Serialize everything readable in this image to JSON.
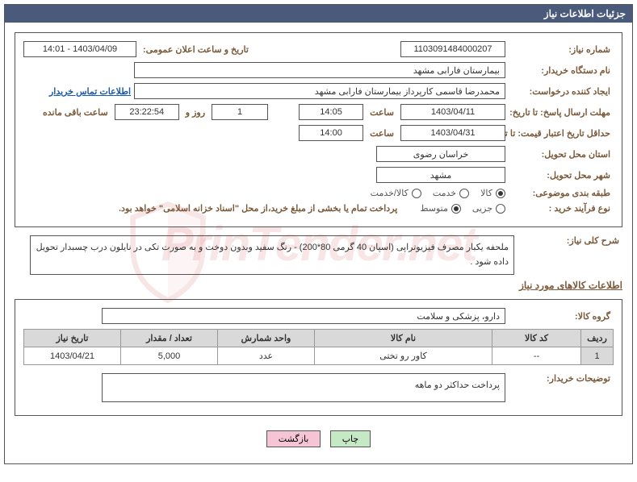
{
  "title": "جزئیات اطلاعات نیاز",
  "fields": {
    "need_no_label": "شماره نیاز:",
    "need_no": "1103091484000207",
    "announce_label": "تاریخ و ساعت اعلان عمومی:",
    "announce_val": "1403/04/09 - 14:01",
    "buyer_org_label": "نام دستگاه خریدار:",
    "buyer_org": "بیمارستان فارابی مشهد",
    "creator_label": "ایجاد کننده درخواست:",
    "creator": "محمدرضا قاسمی کارپرداز بیمارستان فارابی مشهد",
    "contact_link": "اطلاعات تماس خریدار",
    "deadline_send_label": "مهلت ارسال پاسخ: تا تاریخ:",
    "deadline_date": "1403/04/11",
    "time_label": "ساعت",
    "deadline_time": "14:05",
    "remain_days": "1",
    "remain_days_label": "روز و",
    "remain_time": "23:22:54",
    "remain_suffix": "ساعت باقی مانده",
    "validity_label": "حداقل تاریخ اعتبار قیمت: تا تاریخ:",
    "validity_date": "1403/04/31",
    "validity_time": "14:00",
    "province_label": "استان محل تحویل:",
    "province": "خراسان رضوی",
    "city_label": "شهر محل تحویل:",
    "city": "مشهد",
    "category_label": "طبقه بندی موضوعی:",
    "cat_opts": [
      "کالا",
      "خدمت",
      "کالا/خدمت"
    ],
    "cat_selected": 0,
    "process_label": "نوع فرآیند خرید :",
    "proc_opts": [
      "جزیی",
      "متوسط"
    ],
    "proc_selected": 1,
    "process_note": "پرداخت تمام یا بخشی از مبلغ خرید،از محل \"اسناد خزانه اسلامی\" خواهد بود.",
    "desc_label": "شرح کلی نیاز:",
    "desc": "ملحفه یکبار مصرف فیزیوتراپی (اسپان 40 گرمی 80*200) - رنگ سفید وبدون دوخت و به صورت تکی در نایلون درب چسبدار  تحویل داده شود .",
    "goods_header": "اطلاعات کالاهای مورد نیاز",
    "group_label": "گروه کالا:",
    "group": "دارو، پزشکی و سلامت",
    "buyer_note_label": "توضیحات خریدار:",
    "buyer_note": "پرداخت حداکثر دو ماهه"
  },
  "table": {
    "headers": [
      "ردیف",
      "کد کالا",
      "نام کالا",
      "واحد شمارش",
      "تعداد / مقدار",
      "تاریخ نیاز"
    ],
    "rows": [
      [
        "1",
        "--",
        "کاور رو تختی",
        "عدد",
        "5,000",
        "1403/04/21"
      ]
    ]
  },
  "buttons": {
    "print": "چاپ",
    "back": "بازگشت"
  },
  "colors": {
    "titlebar": "#4a5a7a",
    "label": "#7a5a3a",
    "border": "#555555",
    "link": "#1a5aaa",
    "th_bg": "#d9d9d9",
    "btn_green": "#c5e8c5",
    "btn_pink": "#f5c5d5"
  }
}
